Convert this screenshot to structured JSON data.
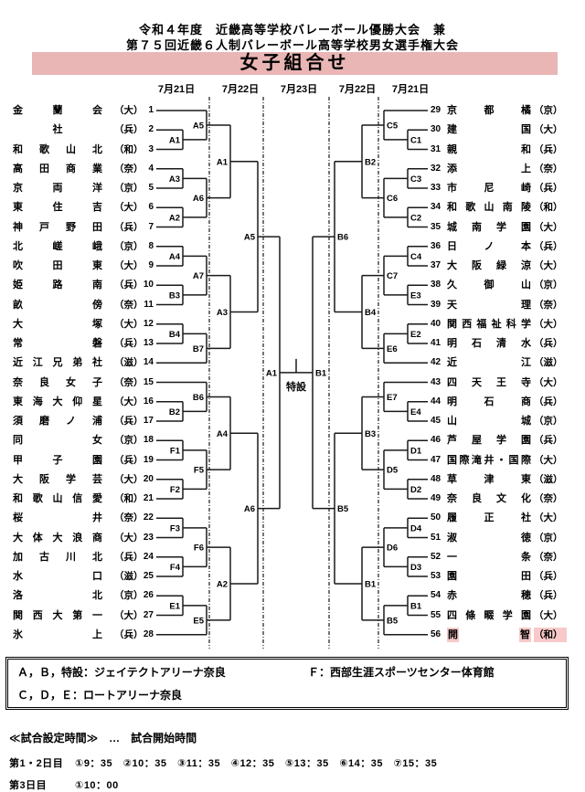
{
  "header": {
    "title_line1": "令和４年度　近畿高等学校バレーボール優勝大会　兼",
    "title_line2": "第７５回近畿６人制バレーボール高等学校男女選手権大会",
    "banner": "女子組合せ",
    "dates": [
      "7月21日",
      "7月22日",
      "7月23日",
      "7月22日",
      "7月21日"
    ]
  },
  "colors": {
    "banner_pink": "#e9b5b5",
    "highlight_pink": "#f8c9c9",
    "line_black": "#1a1a1a"
  },
  "teams_left": [
    {
      "seed": 1,
      "name": "金蘭会",
      "pref": "（大）",
      "bye": true
    },
    {
      "seed": 2,
      "name": "社",
      "pref": "（兵）"
    },
    {
      "seed": 3,
      "name": "和歌山北",
      "pref": "（和）"
    },
    {
      "seed": 4,
      "name": "高田商業",
      "pref": "（奈）"
    },
    {
      "seed": 5,
      "name": "京両洋",
      "pref": "（京）"
    },
    {
      "seed": 6,
      "name": "東住吉",
      "pref": "（大）"
    },
    {
      "seed": 7,
      "name": "神戸野田",
      "pref": "（兵）"
    },
    {
      "seed": 8,
      "name": "北嵯峨",
      "pref": "（京）"
    },
    {
      "seed": 9,
      "name": "吹田東",
      "pref": "（大）"
    },
    {
      "seed": 10,
      "name": "姫路南",
      "pref": "（兵）"
    },
    {
      "seed": 11,
      "name": "畝傍",
      "pref": "（奈）"
    },
    {
      "seed": 12,
      "name": "大塚",
      "pref": "（大）"
    },
    {
      "seed": 13,
      "name": "常磐",
      "pref": "（兵）"
    },
    {
      "seed": 14,
      "name": "近江兄弟社",
      "pref": "（滋）",
      "bye": true
    },
    {
      "seed": 15,
      "name": "奈良女子",
      "pref": "（奈）",
      "bye": true
    },
    {
      "seed": 16,
      "name": "東海大仰星",
      "pref": "（大）"
    },
    {
      "seed": 17,
      "name": "須磨ノ浦",
      "pref": "（兵）"
    },
    {
      "seed": 18,
      "name": "同女",
      "pref": "（京）"
    },
    {
      "seed": 19,
      "name": "甲子園",
      "pref": "（兵）"
    },
    {
      "seed": 20,
      "name": "大阪学芸",
      "pref": "（大）"
    },
    {
      "seed": 21,
      "name": "和歌山信愛",
      "pref": "（和）"
    },
    {
      "seed": 22,
      "name": "桜井",
      "pref": "（奈）"
    },
    {
      "seed": 23,
      "name": "大体大浪商",
      "pref": "（大）"
    },
    {
      "seed": 24,
      "name": "加古川北",
      "pref": "（兵）"
    },
    {
      "seed": 25,
      "name": "水口",
      "pref": "（滋）"
    },
    {
      "seed": 26,
      "name": "洛北",
      "pref": "（京）"
    },
    {
      "seed": 27,
      "name": "関西大第一",
      "pref": "（大）"
    },
    {
      "seed": 28,
      "name": "氷上",
      "pref": "（兵）",
      "bye": true
    }
  ],
  "teams_right": [
    {
      "seed": 29,
      "name": "京都橘",
      "pref": "（京）",
      "bye": true
    },
    {
      "seed": 30,
      "name": "建国",
      "pref": "（大）"
    },
    {
      "seed": 31,
      "name": "親和",
      "pref": "（兵）"
    },
    {
      "seed": 32,
      "name": "添上",
      "pref": "（奈）"
    },
    {
      "seed": 33,
      "name": "市尼崎",
      "pref": "（兵）"
    },
    {
      "seed": 34,
      "name": "和歌山南陵",
      "pref": "（和）"
    },
    {
      "seed": 35,
      "name": "城南学園",
      "pref": "（大）"
    },
    {
      "seed": 36,
      "name": "日ノ本",
      "pref": "（兵）"
    },
    {
      "seed": 37,
      "name": "大阪緑涼",
      "pref": "（大）"
    },
    {
      "seed": 38,
      "name": "久御山",
      "pref": "（京）"
    },
    {
      "seed": 39,
      "name": "天理",
      "pref": "（奈）"
    },
    {
      "seed": 40,
      "name": "関西福祉科学",
      "pref": "（大）"
    },
    {
      "seed": 41,
      "name": "明石清水",
      "pref": "（兵）"
    },
    {
      "seed": 42,
      "name": "近江",
      "pref": "（滋）",
      "bye": true
    },
    {
      "seed": 43,
      "name": "四天王寺",
      "pref": "（大）",
      "bye": true
    },
    {
      "seed": 44,
      "name": "明石商",
      "pref": "（兵）"
    },
    {
      "seed": 45,
      "name": "山城",
      "pref": "（京）"
    },
    {
      "seed": 46,
      "name": "芦屋学園",
      "pref": "（兵）"
    },
    {
      "seed": 47,
      "name": "国際滝井・国際",
      "pref": "（大）"
    },
    {
      "seed": 48,
      "name": "草津東",
      "pref": "（滋）"
    },
    {
      "seed": 49,
      "name": "奈良文化",
      "pref": "（奈）"
    },
    {
      "seed": 50,
      "name": "履正社",
      "pref": "（大）"
    },
    {
      "seed": 51,
      "name": "淑徳",
      "pref": "（京）"
    },
    {
      "seed": 52,
      "name": "一条",
      "pref": "（奈）"
    },
    {
      "seed": 53,
      "name": "園田",
      "pref": "（兵）"
    },
    {
      "seed": 54,
      "name": "赤穂",
      "pref": "（兵）"
    },
    {
      "seed": 55,
      "name": "四條畷学園",
      "pref": "（大）"
    },
    {
      "seed": 56,
      "name": "開智",
      "pref": "（和）",
      "bye": true,
      "highlight": true
    }
  ],
  "bracket": {
    "left": {
      "r1": [
        {
          "label": "A1",
          "a": 2,
          "b": 3
        },
        {
          "label": "A3",
          "a": 4,
          "b": 5
        },
        {
          "label": "A2",
          "a": 6,
          "b": 7
        },
        {
          "label": "A4",
          "a": 8,
          "b": 9
        },
        {
          "label": "B3",
          "a": 10,
          "b": 11
        },
        {
          "label": "B4",
          "a": 12,
          "b": 13
        },
        {
          "label": "B2",
          "a": 16,
          "b": 17
        },
        {
          "label": "F1",
          "a": 18,
          "b": 19
        },
        {
          "label": "F2",
          "a": 20,
          "b": 21
        },
        {
          "label": "F3",
          "a": 22,
          "b": 23
        },
        {
          "label": "F4",
          "a": 24,
          "b": 25
        },
        {
          "label": "E1",
          "a": 26,
          "b": 27
        }
      ],
      "r2": [
        {
          "label": "A5",
          "a": "T1",
          "b": "A1"
        },
        {
          "label": "A6",
          "a": "A3",
          "b": "A2"
        },
        {
          "label": "A7",
          "a": "A4",
          "b": "B3"
        },
        {
          "label": "B7",
          "a": "B4",
          "b": "T14"
        },
        {
          "label": "B6",
          "a": "T15",
          "b": "B2"
        },
        {
          "label": "F5",
          "a": "F1",
          "b": "F2"
        },
        {
          "label": "F6",
          "a": "F3",
          "b": "F4"
        },
        {
          "label": "E5",
          "a": "E1",
          "b": "T28"
        }
      ],
      "qf": [
        {
          "label": "A1",
          "a": "A5",
          "b": "A6"
        },
        {
          "label": "A3",
          "a": "A7",
          "b": "B7"
        },
        {
          "label": "A4",
          "a": "B6",
          "b": "F5"
        },
        {
          "label": "A2",
          "a": "F6",
          "b": "E5"
        }
      ],
      "regf": [
        {
          "label": "A5",
          "a": "A1",
          "b": "A3"
        },
        {
          "label": "A6",
          "a": "A4",
          "b": "A2"
        }
      ],
      "sf_label": "A1"
    },
    "right": {
      "r1": [
        {
          "label": "C1",
          "a": 30,
          "b": 31
        },
        {
          "label": "C3",
          "a": 32,
          "b": 33
        },
        {
          "label": "C2",
          "a": 34,
          "b": 35
        },
        {
          "label": "C4",
          "a": 36,
          "b": 37
        },
        {
          "label": "E3",
          "a": 38,
          "b": 39
        },
        {
          "label": "E2",
          "a": 40,
          "b": 41
        },
        {
          "label": "E4",
          "a": 44,
          "b": 45
        },
        {
          "label": "D1",
          "a": 46,
          "b": 47
        },
        {
          "label": "D2",
          "a": 48,
          "b": 49
        },
        {
          "label": "D4",
          "a": 50,
          "b": 51
        },
        {
          "label": "D3",
          "a": 52,
          "b": 53
        },
        {
          "label": "B1",
          "a": 54,
          "b": 55
        }
      ],
      "r2": [
        {
          "label": "C5",
          "a": "T29",
          "b": "C1"
        },
        {
          "label": "C6",
          "a": "C3",
          "b": "C2"
        },
        {
          "label": "C7",
          "a": "C4",
          "b": "E3"
        },
        {
          "label": "E6",
          "a": "E2",
          "b": "T42"
        },
        {
          "label": "E7",
          "a": "T43",
          "b": "E4"
        },
        {
          "label": "D5",
          "a": "D1",
          "b": "D2"
        },
        {
          "label": "D6",
          "a": "D4",
          "b": "D3"
        },
        {
          "label": "B5",
          "a": "B1",
          "b": "T56"
        }
      ],
      "qf": [
        {
          "label": "B2",
          "a": "C5",
          "b": "C6"
        },
        {
          "label": "B4",
          "a": "C7",
          "b": "E6"
        },
        {
          "label": "B3",
          "a": "E7",
          "b": "D5"
        },
        {
          "label": "B1",
          "a": "D6",
          "b": "B5"
        }
      ],
      "regf": [
        {
          "label": "B6",
          "a": "B2",
          "b": "B4"
        },
        {
          "label": "B5",
          "a": "B3",
          "b": "B1"
        }
      ],
      "sf_label": "B1"
    },
    "final_venue_label": "特設"
  },
  "venues": {
    "ab_line": "Ａ，Ｂ，特設：ジェイテクトアリーナ奈良",
    "f_line": "Ｆ：西部生涯スポーツセンター体育館",
    "cde_line": "Ｃ，Ｄ，Ｅ：ロートアリーナ奈良"
  },
  "times": {
    "heading": "≪試合設定時間≫　…　試合開始時間",
    "day12_label": "第1・2日目",
    "day12_times": "①9：35　②10：35　③11：35　④12：35　⑤13：35　⑥14：35　⑦15：35",
    "day3_label": "第3日目",
    "day3_times": "①10：00"
  }
}
